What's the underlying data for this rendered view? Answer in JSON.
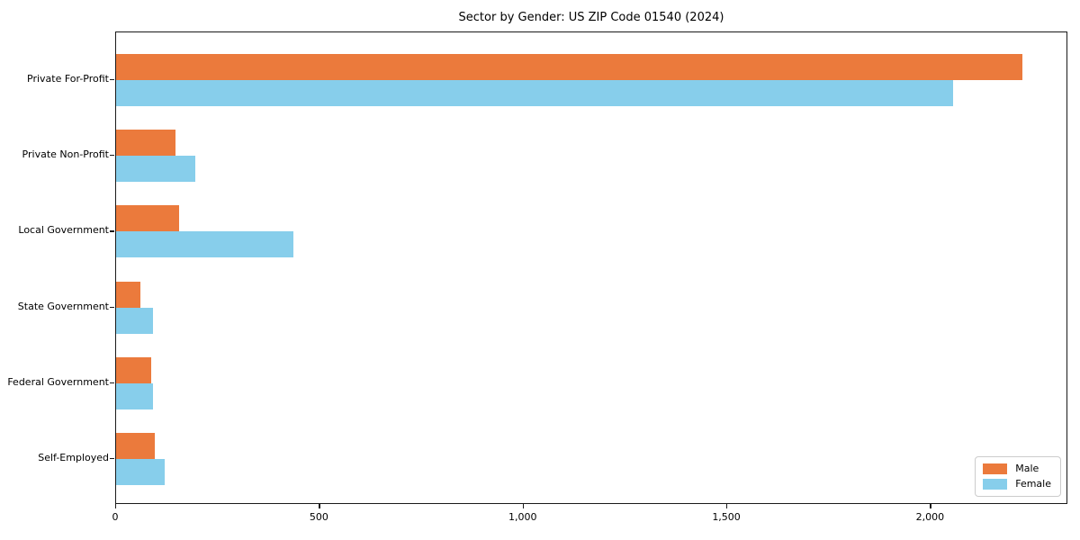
{
  "chart_data": {
    "type": "bar",
    "orientation": "horizontal",
    "title": "Sector by Gender: US ZIP Code 01540 (2024)",
    "categories": [
      "Private For-Profit",
      "Private Non-Profit",
      "Local Government",
      "State Government",
      "Federal Government",
      "Self-Employed"
    ],
    "series": [
      {
        "name": "Male",
        "color": "#EB7A3C",
        "values": [
          2225,
          145,
          155,
          60,
          85,
          95
        ]
      },
      {
        "name": "Female",
        "color": "#87CEEB",
        "values": [
          2055,
          195,
          435,
          90,
          90,
          120
        ]
      }
    ],
    "xlabel": "",
    "ylabel": "",
    "xlim": [
      0,
      2337
    ],
    "x_tick_values": [
      0,
      500,
      1000,
      1500,
      2000
    ],
    "x_tick_labels": [
      "0",
      "500",
      "1,000",
      "1,500",
      "2,000"
    ],
    "grid": false,
    "legend_position": "lower right",
    "background_color": "#ffffff",
    "axis_color": "#1a1a1a"
  }
}
